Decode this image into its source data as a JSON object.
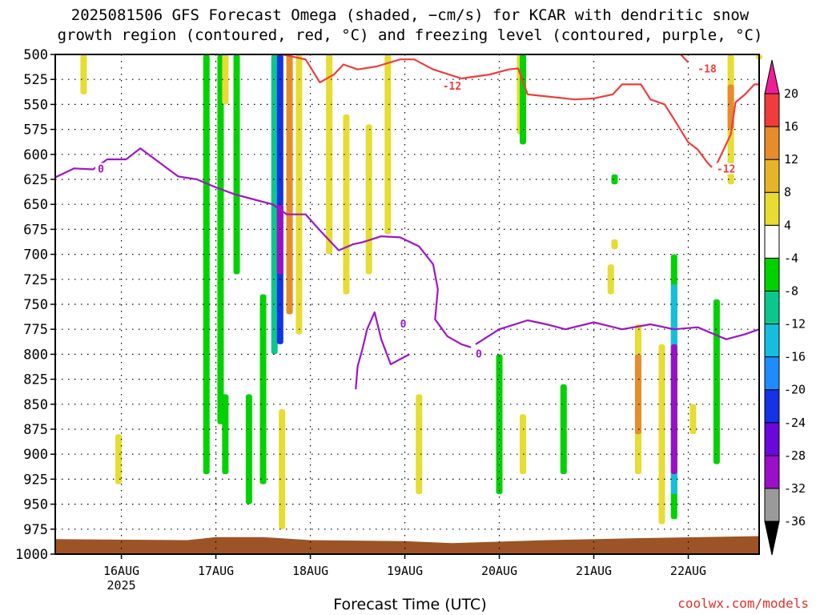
{
  "title_line1": "2025081506 GFS Forecast Omega (shaded, −cm/s) for KCAR with dendritic snow",
  "title_line2": "growth region (contoured, red, °C) and freezing level (contoured, purple, °C)",
  "xlabel": "Forecast Time (UTC)",
  "credit": "coolwx.com/models",
  "colors": {
    "dgz_contour": "#f03c3c",
    "freezing_contour": "#9b16c8",
    "terrain": "#9c5426"
  },
  "chart_data": {
    "type": "heatmap",
    "y_axis": {
      "label": "",
      "unit": "hPa",
      "range": [
        1000,
        500
      ],
      "ticks": [
        500,
        525,
        550,
        575,
        600,
        625,
        650,
        675,
        700,
        725,
        750,
        775,
        800,
        825,
        850,
        875,
        900,
        925,
        950,
        975,
        1000
      ]
    },
    "x_axis": {
      "label": "Forecast Time (UTC)",
      "range_days": [
        15.3,
        22.75
      ],
      "ticks": [
        {
          "day": 16,
          "label": "16AUG",
          "sublabel": "2025"
        },
        {
          "day": 17,
          "label": "17AUG",
          "sublabel": ""
        },
        {
          "day": 18,
          "label": "18AUG",
          "sublabel": ""
        },
        {
          "day": 19,
          "label": "19AUG",
          "sublabel": ""
        },
        {
          "day": 20,
          "label": "20AUG",
          "sublabel": ""
        },
        {
          "day": 21,
          "label": "21AUG",
          "sublabel": ""
        },
        {
          "day": 22,
          "label": "22AUG",
          "sublabel": ""
        }
      ]
    },
    "grid": "dotted",
    "colorbar": {
      "levels": [
        -36,
        -32,
        -28,
        -24,
        -20,
        -16,
        -12,
        -8,
        -4,
        4,
        8,
        12,
        16,
        20
      ],
      "colors": [
        "#9a9a9a",
        "#9b0fc8",
        "#6a08dc",
        "#1432e6",
        "#1e8cff",
        "#14bedc",
        "#0ac88c",
        "#00d200",
        "#ffffff",
        "#e6dc32",
        "#e6b428",
        "#e68c28",
        "#f03c3c"
      ],
      "under_color": "#000000",
      "over_color": "#f01e96"
    },
    "omega_areas": [
      {
        "day": 15.6,
        "p_top": 500,
        "p_bot": 540,
        "value": 6
      },
      {
        "day": 15.97,
        "p_top": 880,
        "p_bot": 930,
        "value": 6
      },
      {
        "day": 16.9,
        "p_top": 500,
        "p_bot": 920,
        "value": -8
      },
      {
        "day": 17.05,
        "p_top": 500,
        "p_bot": 870,
        "value": -8
      },
      {
        "day": 17.1,
        "p_top": 500,
        "p_bot": 550,
        "value": 6
      },
      {
        "day": 17.1,
        "p_top": 840,
        "p_bot": 920,
        "value": -8
      },
      {
        "day": 17.22,
        "p_top": 500,
        "p_bot": 720,
        "value": -8
      },
      {
        "day": 17.35,
        "p_top": 840,
        "p_bot": 950,
        "value": -8
      },
      {
        "day": 17.5,
        "p_top": 740,
        "p_bot": 930,
        "value": -8
      },
      {
        "day": 17.62,
        "p_top": 500,
        "p_bot": 800,
        "value": -12
      },
      {
        "day": 17.68,
        "p_top": 500,
        "p_bot": 790,
        "value": -22
      },
      {
        "day": 17.68,
        "p_top": 650,
        "p_bot": 720,
        "value": -30
      },
      {
        "day": 17.78,
        "p_top": 500,
        "p_bot": 760,
        "value": 14
      },
      {
        "day": 17.7,
        "p_top": 855,
        "p_bot": 975,
        "value": 6
      },
      {
        "day": 17.88,
        "p_top": 500,
        "p_bot": 780,
        "value": 6
      },
      {
        "day": 18.2,
        "p_top": 500,
        "p_bot": 700,
        "value": 6
      },
      {
        "day": 18.38,
        "p_top": 560,
        "p_bot": 740,
        "value": 6
      },
      {
        "day": 18.62,
        "p_top": 570,
        "p_bot": 720,
        "value": 6
      },
      {
        "day": 18.82,
        "p_top": 500,
        "p_bot": 680,
        "value": 6
      },
      {
        "day": 19.15,
        "p_top": 840,
        "p_bot": 940,
        "value": 6
      },
      {
        "day": 20.0,
        "p_top": 800,
        "p_bot": 940,
        "value": -8
      },
      {
        "day": 20.22,
        "p_top": 500,
        "p_bot": 580,
        "value": 6
      },
      {
        "day": 20.25,
        "p_top": 500,
        "p_bot": 590,
        "value": -8
      },
      {
        "day": 20.25,
        "p_top": 860,
        "p_bot": 920,
        "value": 6
      },
      {
        "day": 20.68,
        "p_top": 830,
        "p_bot": 920,
        "value": -8
      },
      {
        "day": 21.22,
        "p_top": 620,
        "p_bot": 630,
        "value": -8
      },
      {
        "day": 21.22,
        "p_top": 685,
        "p_bot": 695,
        "value": 6
      },
      {
        "day": 21.18,
        "p_top": 710,
        "p_bot": 740,
        "value": 6
      },
      {
        "day": 21.47,
        "p_top": 770,
        "p_bot": 920,
        "value": 6
      },
      {
        "day": 21.47,
        "p_top": 800,
        "p_bot": 880,
        "value": 14
      },
      {
        "day": 21.72,
        "p_top": 790,
        "p_bot": 970,
        "value": 6
      },
      {
        "day": 21.85,
        "p_top": 700,
        "p_bot": 965,
        "value": -8
      },
      {
        "day": 21.85,
        "p_top": 730,
        "p_bot": 940,
        "value": -14
      },
      {
        "day": 21.85,
        "p_top": 790,
        "p_bot": 920,
        "value": -30
      },
      {
        "day": 22.05,
        "p_top": 850,
        "p_bot": 880,
        "value": 6
      },
      {
        "day": 22.3,
        "p_top": 745,
        "p_bot": 910,
        "value": -8
      },
      {
        "day": 22.45,
        "p_top": 500,
        "p_bot": 630,
        "value": 6
      },
      {
        "day": 22.45,
        "p_top": 530,
        "p_bot": 575,
        "value": 12
      },
      {
        "day": 22.75,
        "p_top": 500,
        "p_bot": 505,
        "value": 6
      }
    ],
    "dendritic_contours": [
      {
        "label": "-12",
        "label_day": 19.4,
        "label_p": 532,
        "points": [
          [
            17.7,
            500
          ],
          [
            17.95,
            505
          ],
          [
            18.1,
            528
          ],
          [
            18.25,
            520
          ],
          [
            18.35,
            510
          ],
          [
            18.5,
            515
          ],
          [
            18.7,
            512
          ],
          [
            18.95,
            505
          ],
          [
            19.1,
            505
          ],
          [
            19.3,
            515
          ],
          [
            19.6,
            524
          ],
          [
            19.9,
            520
          ],
          [
            20.1,
            515
          ],
          [
            20.2,
            514
          ],
          [
            20.3,
            540
          ],
          [
            20.5,
            542
          ],
          [
            20.8,
            545
          ],
          [
            21.0,
            544
          ],
          [
            21.2,
            540
          ],
          [
            21.3,
            530
          ],
          [
            21.5,
            530
          ],
          [
            21.6,
            545
          ],
          [
            21.75,
            550
          ],
          [
            21.85,
            565
          ],
          [
            22.0,
            588
          ],
          [
            22.1,
            595
          ],
          [
            22.2,
            608
          ],
          [
            22.25,
            613
          ]
        ]
      },
      {
        "label": "-12",
        "label_day": 22.3,
        "label_p": 615,
        "points": [
          [
            22.3,
            610
          ],
          [
            22.45,
            580
          ],
          [
            22.5,
            548
          ],
          [
            22.6,
            540
          ],
          [
            22.7,
            530
          ],
          [
            22.75,
            530
          ]
        ]
      },
      {
        "label": "-18",
        "label_day": 22.1,
        "label_p": 515,
        "points": [
          [
            21.92,
            500
          ],
          [
            22.0,
            508
          ]
        ]
      }
    ],
    "freezing_contours": [
      {
        "label": "0",
        "label_day": 15.75,
        "label_p": 615,
        "points": [
          [
            15.3,
            623
          ],
          [
            15.5,
            614
          ],
          [
            15.7,
            615
          ],
          [
            15.85,
            605
          ],
          [
            16.05,
            605
          ],
          [
            16.2,
            594
          ],
          [
            16.4,
            608
          ],
          [
            16.6,
            622
          ],
          [
            16.8,
            625
          ],
          [
            17.0,
            633
          ],
          [
            17.2,
            640
          ],
          [
            17.4,
            645
          ],
          [
            17.6,
            650
          ],
          [
            17.75,
            660
          ],
          [
            17.95,
            660
          ],
          [
            18.1,
            676
          ],
          [
            18.3,
            696
          ],
          [
            18.45,
            690
          ],
          [
            18.55,
            688
          ],
          [
            18.75,
            682
          ],
          [
            18.95,
            683
          ],
          [
            19.15,
            692
          ],
          [
            19.3,
            710
          ],
          [
            19.35,
            735
          ],
          [
            19.32,
            765
          ],
          [
            19.45,
            782
          ],
          [
            19.6,
            790
          ],
          [
            19.7,
            793
          ]
        ]
      },
      {
        "label": "0",
        "label_day": 18.95,
        "label_p": 770,
        "points": [
          [
            19.05,
            800
          ],
          [
            18.85,
            810
          ],
          [
            18.75,
            785
          ],
          [
            18.68,
            758
          ],
          [
            18.6,
            775
          ],
          [
            18.55,
            795
          ],
          [
            18.5,
            812
          ],
          [
            18.48,
            835
          ]
        ]
      },
      {
        "label": "0",
        "label_day": 19.75,
        "label_p": 800,
        "points": [
          [
            19.75,
            790
          ],
          [
            20.0,
            775
          ],
          [
            20.3,
            766
          ],
          [
            20.5,
            770
          ],
          [
            20.7,
            775
          ],
          [
            21.0,
            768
          ],
          [
            21.3,
            775
          ],
          [
            21.6,
            770
          ],
          [
            21.85,
            775
          ],
          [
            22.1,
            773
          ],
          [
            22.4,
            785
          ],
          [
            22.6,
            780
          ],
          [
            22.75,
            775
          ]
        ]
      }
    ]
  }
}
